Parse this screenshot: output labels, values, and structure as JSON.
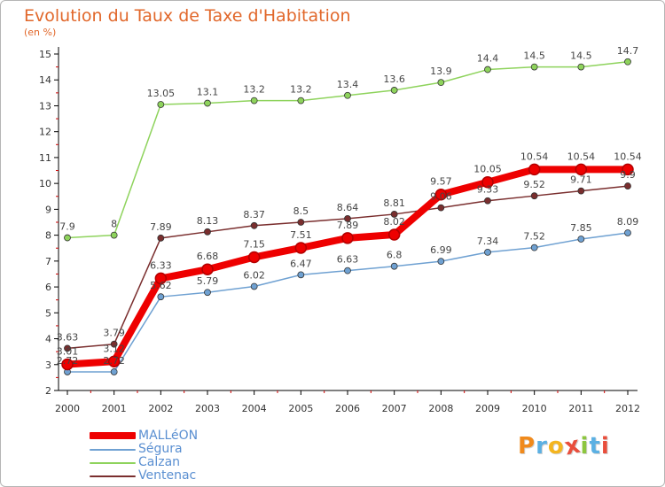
{
  "header": {
    "title": "Evolution du Taux de Taxe d'Habitation",
    "unit": "(en %)"
  },
  "brand": {
    "letters": [
      "P",
      "r",
      "o",
      "x",
      "i",
      "t",
      "i"
    ],
    "colors": [
      "#f08a1c",
      "#5bb0e3",
      "#f4b51f",
      "#e94e3c",
      "#8cc63f",
      "#5bb0e3",
      "#e94e3c"
    ]
  },
  "chart_data": {
    "type": "line",
    "title": "Evolution du Taux de Taxe d'Habitation",
    "ylabel": "(en %)",
    "xlabel": "",
    "x": [
      "2000",
      "2001",
      "2002",
      "2003",
      "2004",
      "2005",
      "2006",
      "2007",
      "2008",
      "2009",
      "2010",
      "2011",
      "2012"
    ],
    "ylim": [
      2,
      15
    ],
    "yticks": [
      2,
      3,
      4,
      5,
      6,
      7,
      8,
      9,
      10,
      11,
      12,
      13,
      14,
      15
    ],
    "grid": false,
    "legend_position": "bottom-left",
    "series": [
      {
        "name": "MALLéON",
        "color": "#ee0000",
        "style": "thick",
        "values": [
          3.01,
          3.12,
          6.33,
          6.68,
          7.15,
          7.51,
          7.89,
          8.02,
          9.57,
          10.05,
          10.54,
          10.54,
          10.54
        ],
        "labels": [
          "3.01",
          "3.12",
          "6.33",
          "6.68",
          "7.15",
          "7.51",
          "7.89",
          "8.02",
          "9.57",
          "10.05",
          "10.54",
          "10.54",
          "10.54"
        ]
      },
      {
        "name": "Ségura",
        "color": "#6fa1d2",
        "style": "thin",
        "values": [
          2.72,
          2.72,
          5.62,
          5.79,
          6.02,
          6.47,
          6.63,
          6.8,
          6.99,
          7.34,
          7.52,
          7.85,
          8.09
        ],
        "labels": [
          "2.72",
          "2.72",
          "5.62",
          "5.79",
          "6.02",
          "6.47",
          "6.63",
          "6.8",
          "6.99",
          "7.34",
          "7.52",
          "7.85",
          "8.09"
        ]
      },
      {
        "name": "Calzan",
        "color": "#8ed35c",
        "style": "thin",
        "values": [
          7.9,
          8,
          13.05,
          13.1,
          13.2,
          13.2,
          13.4,
          13.6,
          13.9,
          14.4,
          14.5,
          14.5,
          14.7
        ],
        "labels": [
          "7.9",
          "8",
          "13.05",
          "13.1",
          "13.2",
          "13.2",
          "13.4",
          "13.6",
          "13.9",
          "14.4",
          "14.5",
          "14.5",
          "14.7"
        ]
      },
      {
        "name": "Ventenac",
        "color": "#7a2e2e",
        "style": "thin",
        "values": [
          3.63,
          3.79,
          7.89,
          8.13,
          8.37,
          8.5,
          8.64,
          8.81,
          9.06,
          9.33,
          9.52,
          9.71,
          9.9
        ],
        "labels": [
          "3.63",
          "3.79",
          "7.89",
          "8.13",
          "8.37",
          "8.5",
          "8.64",
          "8.81",
          "9.06",
          "9.33",
          "9.52",
          "9.71",
          "9.9"
        ]
      }
    ]
  }
}
